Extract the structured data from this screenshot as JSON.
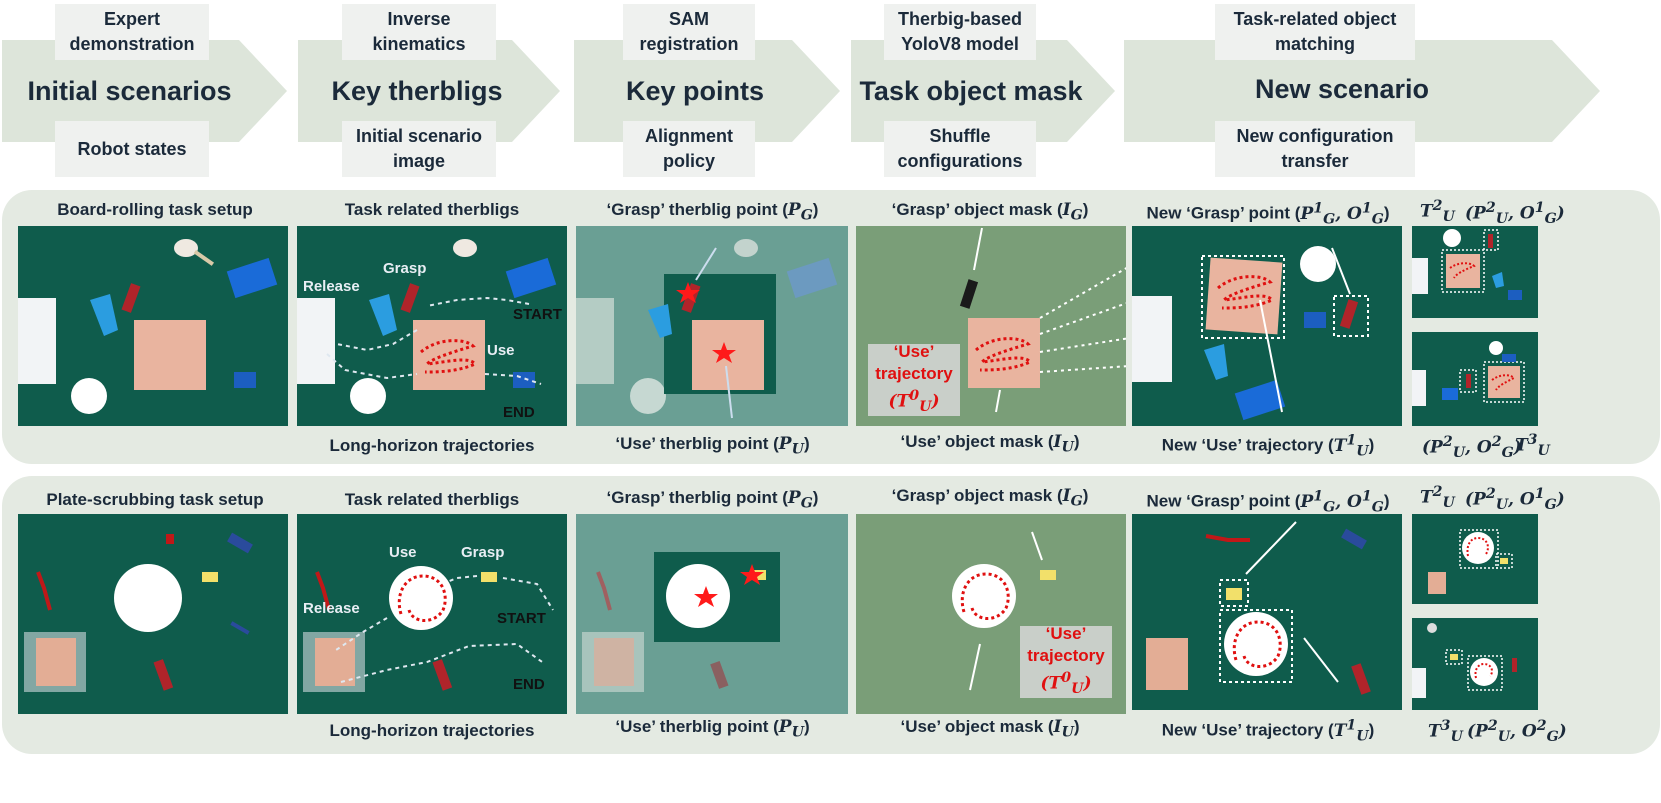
{
  "stages": [
    {
      "title": "Initial scenarios",
      "top": "Expert demonstration",
      "bottom": "Robot states"
    },
    {
      "title": "Key therbligs",
      "top": "Inverse kinematics",
      "bottom": "Initial scenario image"
    },
    {
      "title": "Key points",
      "top": "SAM registration",
      "bottom": "Alignment policy"
    },
    {
      "title": "Task object mask",
      "top": "Therbig-based YoloV8 model",
      "bottom": "Shuffle configurations"
    },
    {
      "title": "New scenario",
      "top": "Task-related object matching",
      "bottom": "New configuration transfer"
    }
  ],
  "row1": {
    "setup_caption": "Board-rolling task setup",
    "therbligs_caption": "Task related therbligs",
    "trajectories_caption": "Long-horizon trajectories",
    "grasp_point_caption": "‘Grasp’ therblig point (P_G)",
    "use_point_caption": "‘Use’ therblig point (P_U)",
    "grasp_mask_caption": "‘Grasp’ object mask (I_G)",
    "use_mask_caption": "‘Use’ object mask (I_U)",
    "new_grasp_caption": "New ‘Grasp’ point (P_G^1, O_G^1)",
    "new_use_caption": "New ‘Use’ trajectory (T_U^1)",
    "labels": {
      "release": "Release",
      "grasp": "Grasp",
      "start": "START",
      "use": "Use",
      "end": "END"
    },
    "use_traj": [
      "‘Use’",
      "trajectory",
      "(T_U^0)"
    ],
    "thumb_top_left": "T_U^2",
    "thumb_top_right": "(P_U^2, O_G^1)",
    "thumb_bottom_left": "(P_U^2, O_G^2)",
    "thumb_bottom_right": "T_U^3"
  },
  "row2": {
    "setup_caption": "Plate-scrubbing task setup",
    "therbligs_caption": "Task related therbligs",
    "trajectories_caption": "Long-horizon trajectories",
    "grasp_point_caption": "‘Grasp’ therblig point (P_G)",
    "use_point_caption": "‘Use’ therblig point (P_U)",
    "grasp_mask_caption": "‘Grasp’ object mask (I_G)",
    "use_mask_caption": "‘Use’ object mask (I_U)",
    "new_grasp_caption": "New ‘Grasp’ point (P_G^1, O_G^1)",
    "new_use_caption": "New ‘Use’ trajectory (T_U^1)",
    "labels": {
      "use": "Use",
      "grasp": "Grasp",
      "release": "Release",
      "start": "START",
      "end": "END"
    },
    "use_traj": [
      "‘Use’",
      "trajectory",
      "(T_U^0)"
    ],
    "thumb_top_left": "T_U^2",
    "thumb_top_right": "(P_U^2, O_G^1)",
    "thumb_bottom_left": "T_U^3",
    "thumb_bottom_right": "(P_U^2, O_G^2)"
  },
  "colors": {
    "arrow": "#dde5da",
    "panel": "#e4eae2",
    "table": "#0f5c4c",
    "star": "#ff1a1a",
    "trajectory": "#e01010"
  }
}
